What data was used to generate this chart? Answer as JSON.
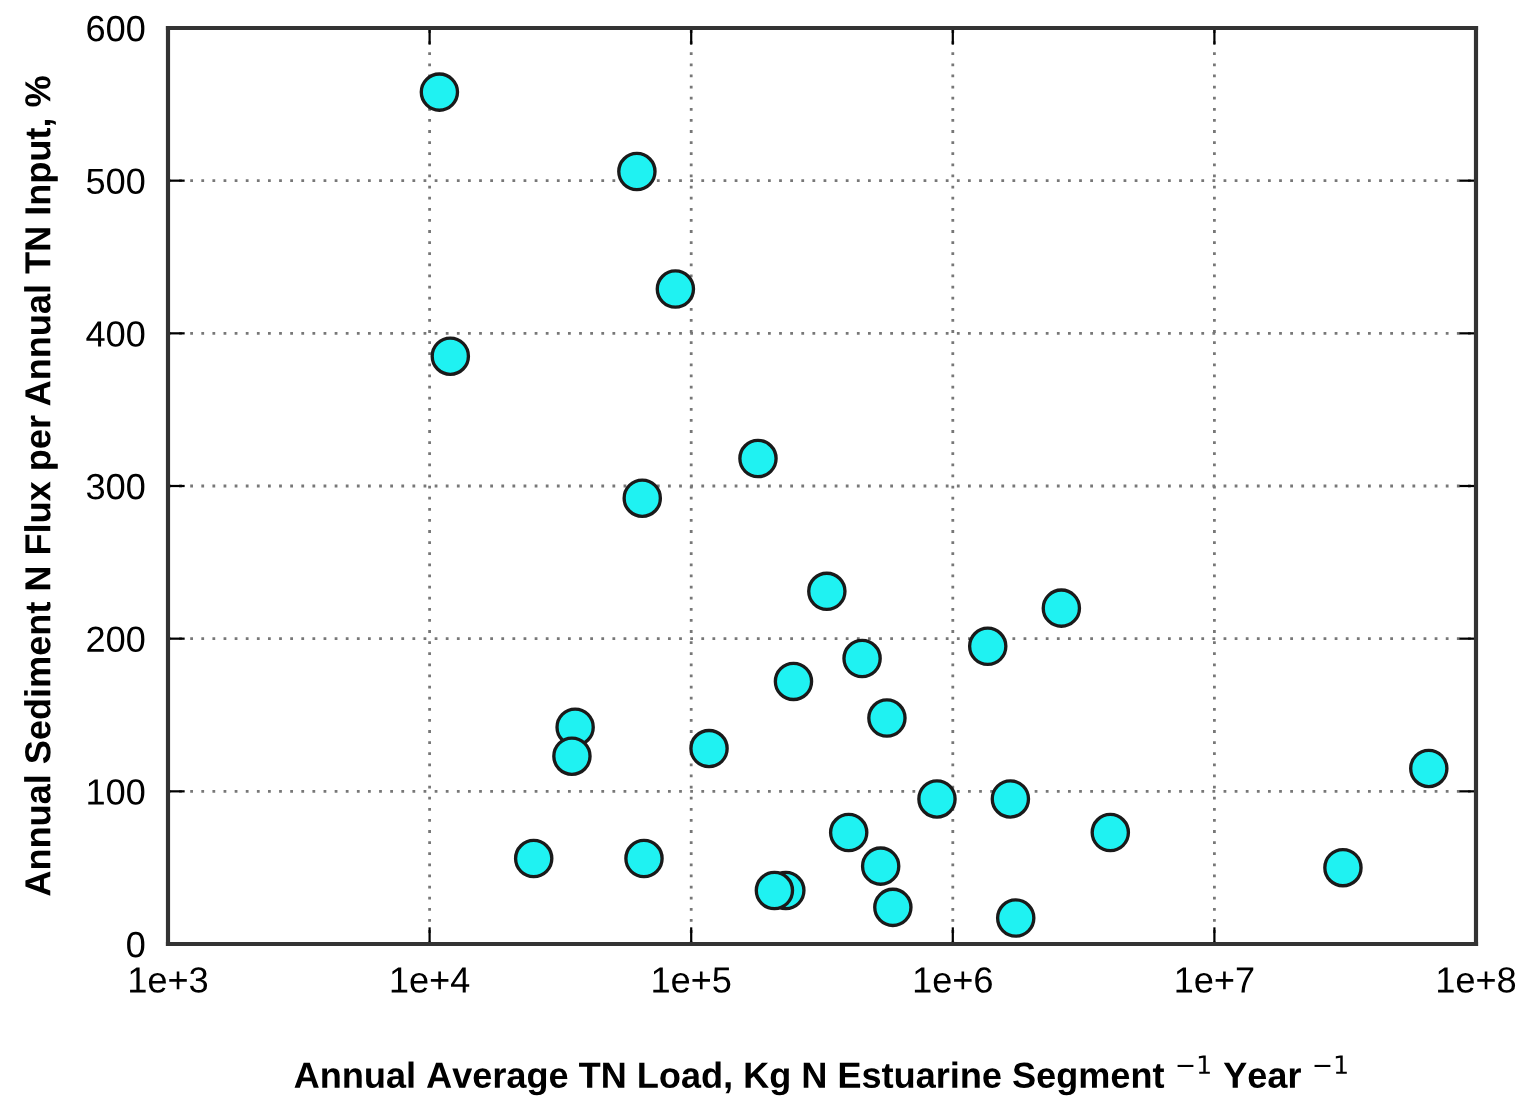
{
  "chart_data": {
    "type": "scatter",
    "xlabel": "Annual Average TN Load, Kg N Estuarine Segment $^{−1}$ Year $^{−1}$",
    "ylabel": "Annual Sediment N Flux per Annual TN Input, %",
    "x": [
      10900,
      62000,
      87000,
      12000,
      180000,
      65000,
      36000,
      35000,
      117000,
      25000,
      66000,
      230000,
      208000,
      330000,
      2600000,
      450000,
      1360000,
      246000,
      560000,
      870000,
      1660000,
      66000000,
      400000,
      4000000,
      530000,
      31000000,
      590000,
      1740000
    ],
    "values": [
      558,
      506,
      429,
      385,
      318,
      292,
      142,
      123,
      128,
      56,
      56,
      35,
      35,
      231,
      220,
      187,
      195,
      172,
      148,
      95,
      95,
      115,
      73,
      73,
      51,
      50,
      24,
      17
    ],
    "color": "#1ff2f2",
    "marker": "circle",
    "log": "x",
    "xlim": [
      1000,
      100000000
    ],
    "xticks": [
      {
        "value": 1000,
        "label": "1e+3"
      },
      {
        "value": 10000,
        "label": "1e+4"
      },
      {
        "value": 100000,
        "label": "1e+5"
      },
      {
        "value": 1000000,
        "label": "1e+6"
      },
      {
        "value": 10000000,
        "label": "1e+7"
      },
      {
        "value": 100000000,
        "label": "1e+8"
      }
    ],
    "ylim": [
      0,
      600
    ],
    "yticks": [
      0,
      100,
      200,
      300,
      400,
      500,
      600
    ],
    "grid": true
  }
}
